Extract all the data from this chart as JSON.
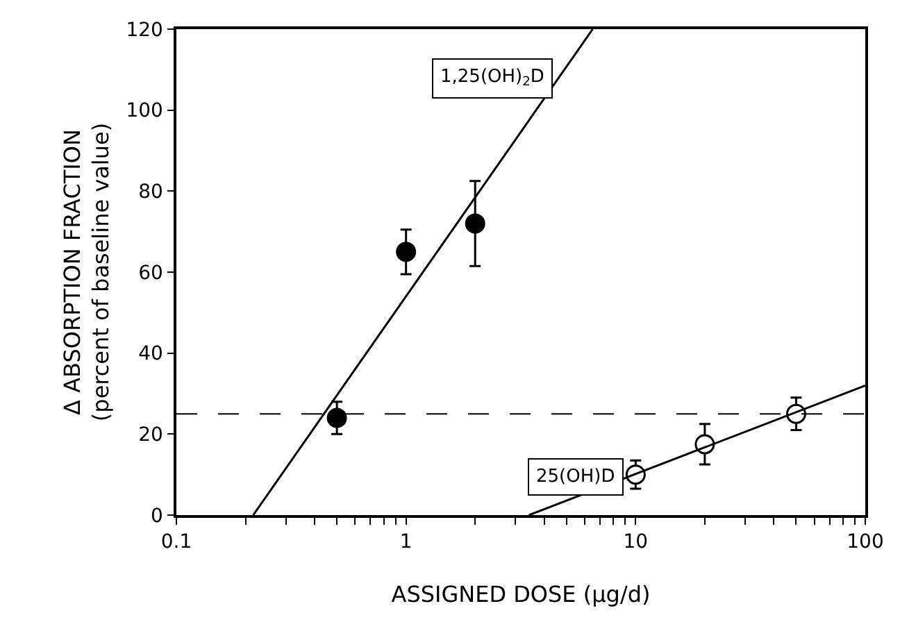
{
  "chart_data": {
    "type": "scatter",
    "xlabel": "ASSIGNED DOSE (μg/d)",
    "ylabel": "Δ ABSORPTION FRACTION\n(percent of baseline value)",
    "log": "x",
    "xlim": [
      0.1,
      100
    ],
    "ylim": [
      0,
      120
    ],
    "xticks": [
      0.1,
      {
        "value": 0.2,
        "label": null
      },
      {
        "value": 0.3,
        "label": null
      },
      {
        "value": 0.4,
        "label": null
      },
      {
        "value": 0.5,
        "label": null
      },
      {
        "value": 0.6,
        "label": null
      },
      {
        "value": 0.7,
        "label": null
      },
      {
        "value": 0.8,
        "label": null
      },
      {
        "value": 0.9,
        "label": null
      },
      1,
      {
        "value": 2,
        "label": null
      },
      {
        "value": 3,
        "label": null
      },
      {
        "value": 4,
        "label": null
      },
      {
        "value": 5,
        "label": null
      },
      {
        "value": 6,
        "label": null
      },
      {
        "value": 7,
        "label": null
      },
      {
        "value": 8,
        "label": null
      },
      {
        "value": 9,
        "label": null
      },
      10,
      {
        "value": 20,
        "label": null
      },
      {
        "value": 30,
        "label": null
      },
      {
        "value": 40,
        "label": null
      },
      {
        "value": 50,
        "label": null
      },
      {
        "value": 60,
        "label": null
      },
      {
        "value": 70,
        "label": null
      },
      {
        "value": 80,
        "label": null
      },
      {
        "value": 90,
        "label": null
      },
      100
    ],
    "yticks": [
      0,
      20,
      40,
      60,
      80,
      100,
      120
    ],
    "legend": false,
    "series": [
      {
        "color": "#000000",
        "marker": "circle",
        "x": [
          0.5,
          1,
          2
        ],
        "values": [
          24,
          65,
          72
        ],
        "errors": [
          4,
          5.5,
          10.5
        ]
      },
      {
        "color": "#ffffff",
        "marker": "circle",
        "x": [
          10,
          20,
          50
        ],
        "values": [
          10,
          17.5,
          25
        ],
        "errors": [
          3.5,
          5,
          4
        ]
      },
      {
        "type": "line",
        "name": "1,25(OH)$_{2}$D",
        "color": "#000000",
        "line_style": "solid",
        "x": [
          0.216,
          6.5
        ],
        "values": [
          0,
          120
        ]
      },
      {
        "type": "line",
        "name": "25(OH)D",
        "color": "#000000",
        "line_style": "solid",
        "x": [
          3.43,
          100
        ],
        "values": [
          0,
          32
        ]
      }
    ],
    "ref_lines": [
      {
        "axis": "y",
        "value": 25,
        "color": "#000000",
        "line_style": "dashed"
      }
    ]
  }
}
